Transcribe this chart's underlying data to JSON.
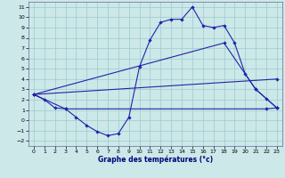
{
  "xlabel": "Graphe des températures (°c)",
  "bg_color": "#cce8e8",
  "line_color": "#2222aa",
  "grid_color": "#99cccc",
  "xlim": [
    -0.5,
    23.5
  ],
  "ylim": [
    -2.5,
    11.5
  ],
  "xticks": [
    0,
    1,
    2,
    3,
    4,
    5,
    6,
    7,
    8,
    9,
    10,
    11,
    12,
    13,
    14,
    15,
    16,
    17,
    18,
    19,
    20,
    21,
    22,
    23
  ],
  "yticks": [
    -2,
    -1,
    0,
    1,
    2,
    3,
    4,
    5,
    6,
    7,
    8,
    9,
    10,
    11
  ],
  "line1_x": [
    0,
    1,
    2,
    3,
    4,
    5,
    6,
    7,
    8,
    9,
    10,
    11,
    12,
    13,
    14,
    15,
    16,
    17,
    18,
    19,
    20,
    21,
    22,
    23
  ],
  "line1_y": [
    2.5,
    2.0,
    1.2,
    1.1,
    0.3,
    -0.5,
    -1.1,
    -1.5,
    -1.3,
    0.3,
    5.2,
    7.8,
    9.5,
    9.8,
    9.8,
    11.0,
    9.2,
    9.0,
    9.2,
    7.5,
    4.5,
    3.0,
    2.1,
    1.2
  ],
  "line2_x": [
    0,
    3,
    22,
    23
  ],
  "line2_y": [
    2.5,
    1.1,
    1.1,
    1.2
  ],
  "line3_x": [
    0,
    23
  ],
  "line3_y": [
    2.5,
    4.0
  ],
  "line4_x": [
    0,
    18,
    21,
    23
  ],
  "line4_y": [
    2.5,
    7.5,
    3.0,
    1.2
  ]
}
